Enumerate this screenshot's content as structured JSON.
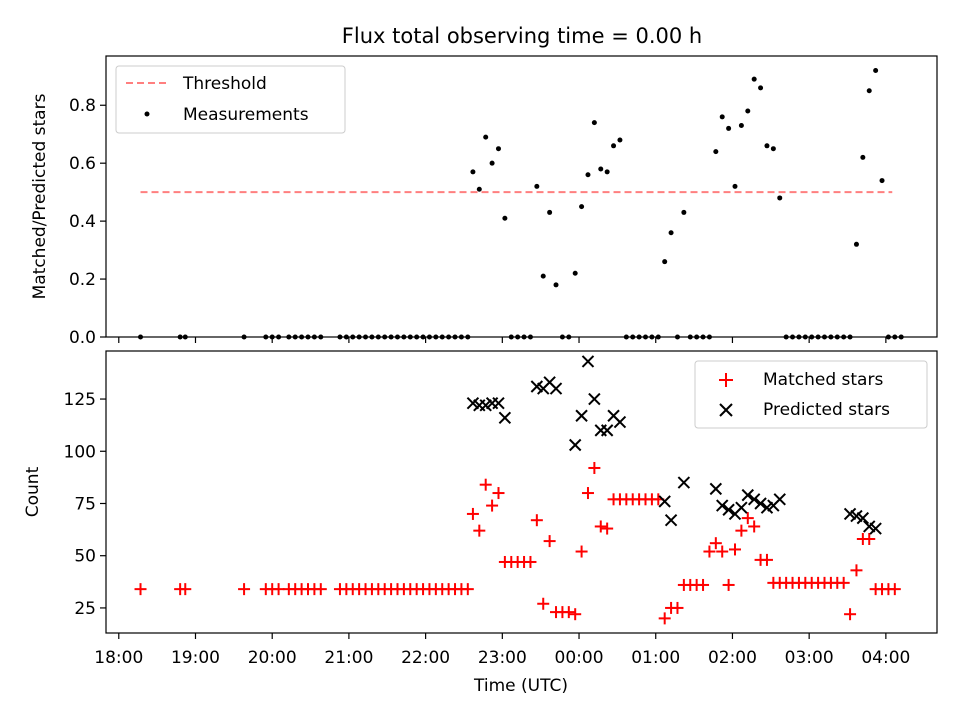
{
  "chart_data": [
    {
      "type": "scatter",
      "title": "Flux total observing time = 0.00 h",
      "xlabel": "",
      "ylabel": "Matched/Predicted stars",
      "x_unit": "time (UTC, h after 18:00)",
      "xlim": [
        "17:50",
        "04:40"
      ],
      "ylim": [
        0,
        0.97
      ],
      "y_ticks": [
        "0.0",
        "0.2",
        "0.4",
        "0.6",
        "0.8"
      ],
      "legend_position": "top-left",
      "legend": [
        "Threshold",
        "Measurements"
      ],
      "colors": {
        "threshold": "#ff7f7f",
        "measurements": "#000000"
      },
      "threshold": {
        "name": "Threshold",
        "value": 0.5,
        "x_range": [
          "18:17",
          "04:05"
        ]
      },
      "measurements": {
        "name": "Measurements",
        "points": [
          [
            "18:17",
            0
          ],
          [
            "18:48",
            0
          ],
          [
            "18:52",
            0
          ],
          [
            "19:38",
            0
          ],
          [
            "19:55",
            0
          ],
          [
            "20:00",
            0
          ],
          [
            "20:05",
            0
          ],
          [
            "20:13",
            0
          ],
          [
            "20:18",
            0
          ],
          [
            "20:23",
            0
          ],
          [
            "20:28",
            0
          ],
          [
            "20:33",
            0
          ],
          [
            "20:38",
            0
          ],
          [
            "20:53",
            0
          ],
          [
            "20:58",
            0
          ],
          [
            "21:03",
            0
          ],
          [
            "21:08",
            0
          ],
          [
            "21:13",
            0
          ],
          [
            "21:18",
            0
          ],
          [
            "21:23",
            0
          ],
          [
            "21:28",
            0
          ],
          [
            "21:33",
            0
          ],
          [
            "21:38",
            0
          ],
          [
            "21:43",
            0
          ],
          [
            "21:48",
            0
          ],
          [
            "21:53",
            0
          ],
          [
            "21:58",
            0
          ],
          [
            "22:03",
            0
          ],
          [
            "22:08",
            0
          ],
          [
            "22:13",
            0
          ],
          [
            "22:18",
            0
          ],
          [
            "22:23",
            0
          ],
          [
            "22:28",
            0
          ],
          [
            "22:33",
            0
          ],
          [
            "22:37",
            0.57
          ],
          [
            "22:42",
            0.51
          ],
          [
            "22:47",
            0.69
          ],
          [
            "22:52",
            0.6
          ],
          [
            "22:57",
            0.65
          ],
          [
            "23:02",
            0.41
          ],
          [
            "23:07",
            0
          ],
          [
            "23:12",
            0
          ],
          [
            "23:17",
            0
          ],
          [
            "23:22",
            0
          ],
          [
            "23:27",
            0.52
          ],
          [
            "23:32",
            0.21
          ],
          [
            "23:37",
            0.43
          ],
          [
            "23:42",
            0.18
          ],
          [
            "23:47",
            0
          ],
          [
            "23:52",
            0
          ],
          [
            "23:57",
            0.22
          ],
          [
            "00:02",
            0.45
          ],
          [
            "00:07",
            0.56
          ],
          [
            "00:12",
            0.74
          ],
          [
            "00:17",
            0.58
          ],
          [
            "00:22",
            0.57
          ],
          [
            "00:27",
            0.66
          ],
          [
            "00:32",
            0.68
          ],
          [
            "00:37",
            0
          ],
          [
            "00:42",
            0
          ],
          [
            "00:47",
            0
          ],
          [
            "00:52",
            0
          ],
          [
            "00:57",
            0
          ],
          [
            "01:02",
            0
          ],
          [
            "01:07",
            0.26
          ],
          [
            "01:12",
            0.36
          ],
          [
            "01:17",
            0
          ],
          [
            "01:22",
            0.43
          ],
          [
            "01:27",
            0
          ],
          [
            "01:32",
            0
          ],
          [
            "01:37",
            0
          ],
          [
            "01:42",
            0
          ],
          [
            "01:47",
            0.64
          ],
          [
            "01:52",
            0.76
          ],
          [
            "01:57",
            0.72
          ],
          [
            "02:02",
            0.52
          ],
          [
            "02:07",
            0.73
          ],
          [
            "02:12",
            0.78
          ],
          [
            "02:17",
            0.89
          ],
          [
            "02:22",
            0.86
          ],
          [
            "02:27",
            0.66
          ],
          [
            "02:32",
            0.65
          ],
          [
            "02:37",
            0.48
          ],
          [
            "02:42",
            0
          ],
          [
            "02:47",
            0
          ],
          [
            "02:52",
            0
          ],
          [
            "02:57",
            0
          ],
          [
            "03:02",
            0
          ],
          [
            "03:07",
            0
          ],
          [
            "03:12",
            0
          ],
          [
            "03:17",
            0
          ],
          [
            "03:22",
            0
          ],
          [
            "03:27",
            0
          ],
          [
            "03:32",
            0
          ],
          [
            "03:37",
            0.32
          ],
          [
            "03:42",
            0.62
          ],
          [
            "03:47",
            0.85
          ],
          [
            "03:52",
            0.92
          ],
          [
            "03:57",
            0.54
          ],
          [
            "04:02",
            0
          ],
          [
            "04:07",
            0
          ],
          [
            "04:12",
            0
          ]
        ]
      }
    },
    {
      "type": "scatter",
      "title": "",
      "xlabel": "Time (UTC)",
      "ylabel": "Count",
      "xlim": [
        "17:50",
        "04:40"
      ],
      "ylim": [
        13,
        148
      ],
      "y_ticks": [
        "25",
        "50",
        "75",
        "100",
        "125"
      ],
      "x_ticks": [
        "18:00",
        "19:00",
        "20:00",
        "21:00",
        "22:00",
        "23:00",
        "00:00",
        "01:00",
        "02:00",
        "03:00",
        "04:00"
      ],
      "legend_position": "top-right",
      "legend": [
        "Matched stars",
        "Predicted stars"
      ],
      "colors": {
        "matched": "#ff0000",
        "predicted": "#000000"
      },
      "series": [
        {
          "name": "Matched stars",
          "marker": "plus",
          "points": [
            [
              "18:17",
              34
            ],
            [
              "18:48",
              34
            ],
            [
              "18:52",
              34
            ],
            [
              "19:38",
              34
            ],
            [
              "19:55",
              34
            ],
            [
              "20:00",
              34
            ],
            [
              "20:05",
              34
            ],
            [
              "20:13",
              34
            ],
            [
              "20:18",
              34
            ],
            [
              "20:23",
              34
            ],
            [
              "20:28",
              34
            ],
            [
              "20:33",
              34
            ],
            [
              "20:38",
              34
            ],
            [
              "20:53",
              34
            ],
            [
              "20:58",
              34
            ],
            [
              "21:03",
              34
            ],
            [
              "21:08",
              34
            ],
            [
              "21:13",
              34
            ],
            [
              "21:18",
              34
            ],
            [
              "21:23",
              34
            ],
            [
              "21:28",
              34
            ],
            [
              "21:33",
              34
            ],
            [
              "21:38",
              34
            ],
            [
              "21:43",
              34
            ],
            [
              "21:48",
              34
            ],
            [
              "21:53",
              34
            ],
            [
              "21:58",
              34
            ],
            [
              "22:03",
              34
            ],
            [
              "22:08",
              34
            ],
            [
              "22:13",
              34
            ],
            [
              "22:18",
              34
            ],
            [
              "22:23",
              34
            ],
            [
              "22:28",
              34
            ],
            [
              "22:33",
              34
            ],
            [
              "22:37",
              70
            ],
            [
              "22:42",
              62
            ],
            [
              "22:47",
              84
            ],
            [
              "22:52",
              74
            ],
            [
              "22:57",
              80
            ],
            [
              "23:02",
              47
            ],
            [
              "23:07",
              47
            ],
            [
              "23:12",
              47
            ],
            [
              "23:17",
              47
            ],
            [
              "23:22",
              47
            ],
            [
              "23:27",
              67
            ],
            [
              "23:32",
              27
            ],
            [
              "23:37",
              57
            ],
            [
              "23:42",
              23
            ],
            [
              "23:47",
              23
            ],
            [
              "23:52",
              23
            ],
            [
              "23:57",
              22
            ],
            [
              "00:02",
              52
            ],
            [
              "00:07",
              80
            ],
            [
              "00:12",
              92
            ],
            [
              "00:17",
              64
            ],
            [
              "00:22",
              63
            ],
            [
              "00:27",
              77
            ],
            [
              "00:32",
              77
            ],
            [
              "00:37",
              77
            ],
            [
              "00:42",
              77
            ],
            [
              "00:47",
              77
            ],
            [
              "00:52",
              77
            ],
            [
              "00:57",
              77
            ],
            [
              "01:02",
              77
            ],
            [
              "01:07",
              20
            ],
            [
              "01:12",
              25
            ],
            [
              "01:17",
              25
            ],
            [
              "01:22",
              36
            ],
            [
              "01:27",
              36
            ],
            [
              "01:32",
              36
            ],
            [
              "01:37",
              36
            ],
            [
              "01:42",
              52
            ],
            [
              "01:47",
              56
            ],
            [
              "01:52",
              52
            ],
            [
              "01:57",
              36
            ],
            [
              "02:02",
              53
            ],
            [
              "02:07",
              62
            ],
            [
              "02:12",
              68
            ],
            [
              "02:17",
              64
            ],
            [
              "02:22",
              48
            ],
            [
              "02:27",
              48
            ],
            [
              "02:32",
              37
            ],
            [
              "02:37",
              37
            ],
            [
              "02:42",
              37
            ],
            [
              "02:47",
              37
            ],
            [
              "02:52",
              37
            ],
            [
              "02:57",
              37
            ],
            [
              "03:02",
              37
            ],
            [
              "03:07",
              37
            ],
            [
              "03:12",
              37
            ],
            [
              "03:17",
              37
            ],
            [
              "03:22",
              37
            ],
            [
              "03:27",
              37
            ],
            [
              "03:32",
              22
            ],
            [
              "03:37",
              43
            ],
            [
              "03:42",
              58
            ],
            [
              "03:47",
              58
            ],
            [
              "03:52",
              34
            ],
            [
              "03:57",
              34
            ],
            [
              "04:02",
              34
            ],
            [
              "04:07",
              34
            ]
          ]
        },
        {
          "name": "Predicted stars",
          "marker": "x",
          "points": [
            [
              "22:37",
              123
            ],
            [
              "22:42",
              122
            ],
            [
              "22:47",
              122
            ],
            [
              "22:52",
              123
            ],
            [
              "22:57",
              123
            ],
            [
              "23:02",
              116
            ],
            [
              "23:27",
              131
            ],
            [
              "23:32",
              130
            ],
            [
              "23:37",
              133
            ],
            [
              "23:42",
              130
            ],
            [
              "23:57",
              103
            ],
            [
              "00:02",
              117
            ],
            [
              "00:07",
              143
            ],
            [
              "00:12",
              125
            ],
            [
              "00:17",
              110
            ],
            [
              "00:22",
              110
            ],
            [
              "00:27",
              117
            ],
            [
              "00:32",
              114
            ],
            [
              "01:07",
              76
            ],
            [
              "01:12",
              67
            ],
            [
              "01:22",
              85
            ],
            [
              "01:47",
              82
            ],
            [
              "01:52",
              74
            ],
            [
              "01:57",
              72
            ],
            [
              "02:02",
              70
            ],
            [
              "02:07",
              73
            ],
            [
              "02:12",
              79
            ],
            [
              "02:17",
              77
            ],
            [
              "02:22",
              75
            ],
            [
              "02:27",
              73
            ],
            [
              "02:32",
              74
            ],
            [
              "02:37",
              77
            ],
            [
              "03:32",
              70
            ],
            [
              "03:37",
              69
            ],
            [
              "03:42",
              68
            ],
            [
              "03:47",
              64
            ],
            [
              "03:52",
              63
            ]
          ]
        }
      ]
    }
  ]
}
